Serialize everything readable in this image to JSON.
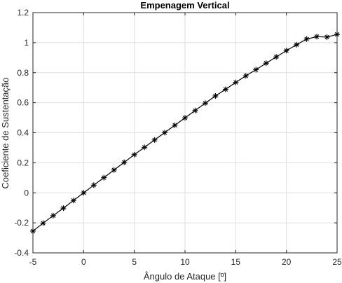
{
  "chart_data": {
    "type": "line",
    "title": "Empenagem Vertical",
    "xlabel": "Ângulo de Ataque [º]",
    "ylabel": "Coeficiente de Sustentação",
    "xlim": [
      -5,
      25
    ],
    "ylim": [
      -0.4,
      1.2
    ],
    "xticks": [
      -5,
      0,
      5,
      10,
      15,
      20,
      25
    ],
    "yticks": [
      -0.4,
      -0.2,
      0,
      0.2,
      0.4,
      0.6,
      0.8,
      1,
      1.2
    ],
    "grid": true,
    "legend": "none",
    "line_color": "#000000",
    "marker": "asterisk",
    "x": [
      -5,
      -4,
      -3,
      -2,
      -1,
      0,
      1,
      2,
      3,
      4,
      5,
      6,
      7,
      8,
      9,
      10,
      11,
      12,
      13,
      14,
      15,
      16,
      17,
      18,
      19,
      20,
      21,
      22,
      23,
      24,
      25
    ],
    "y": [
      -0.255,
      -0.202,
      -0.152,
      -0.102,
      -0.051,
      0.0,
      0.051,
      0.101,
      0.152,
      0.203,
      0.254,
      0.303,
      0.352,
      0.401,
      0.45,
      0.499,
      0.548,
      0.597,
      0.645,
      0.689,
      0.735,
      0.779,
      0.82,
      0.863,
      0.905,
      0.947,
      0.986,
      1.024,
      1.04,
      1.037,
      1.055
    ]
  }
}
